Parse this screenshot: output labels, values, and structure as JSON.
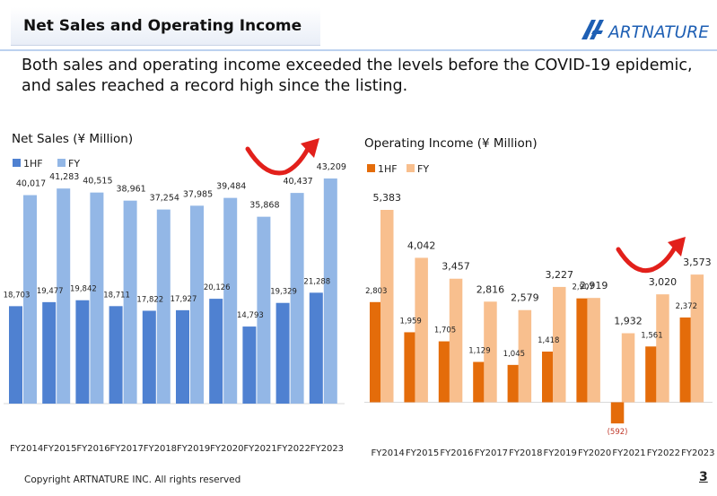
{
  "header": {
    "title": "Net Sales and Operating Income",
    "logo_text": "ARTNATURE"
  },
  "subtitle": "Both sales and operating income exceeded the levels before the COVID-19 epidemic, and sales reached a record high since the listing.",
  "footer": {
    "copyright": "Copyright ARTNATURE INC. All rights reserved",
    "page_number": "3"
  },
  "colors": {
    "net_1hf": "#4f81d1",
    "net_fy": "#93b7e6",
    "op_1hf": "#e46c0a",
    "op_fy": "#f8bf8e",
    "arrow": "#e2201b",
    "accent_line": "#bcd1ef"
  },
  "chart_data": [
    {
      "type": "bar",
      "title": "Net Sales (¥ Million)",
      "categories": [
        "FY2014",
        "FY2015",
        "FY2016",
        "FY2017",
        "FY2018",
        "FY2019",
        "FY2020",
        "FY2021",
        "FY2022",
        "FY2023"
      ],
      "series": [
        {
          "name": "1HF",
          "values": [
            18703,
            19477,
            19842,
            18711,
            17822,
            17927,
            20126,
            14793,
            19329,
            21288
          ],
          "labels": [
            "18,703",
            "19,477",
            "19,842",
            "18,711",
            "17,822",
            "17,927",
            "20,126",
            "14,793",
            "19,329",
            "21,288"
          ]
        },
        {
          "name": "FY",
          "values": [
            40017,
            41283,
            40515,
            38961,
            37254,
            37985,
            39484,
            35868,
            40437,
            43209
          ],
          "labels": [
            "40,017",
            "41,283",
            "40,515",
            "38,961",
            "37,254",
            "37,985",
            "39,484",
            "35,868",
            "40,437",
            "43,209"
          ]
        }
      ],
      "ylim": [
        0,
        45000
      ],
      "legend": "top-left"
    },
    {
      "type": "bar",
      "title": "Operating Income (¥ Million)",
      "categories": [
        "FY2014",
        "FY2015",
        "FY2016",
        "FY2017",
        "FY2018",
        "FY2019",
        "FY2020",
        "FY2021",
        "FY2022",
        "FY2023"
      ],
      "series": [
        {
          "name": "1HF",
          "values": [
            2803,
            1959,
            1705,
            1129,
            1045,
            1418,
            2907,
            -592,
            1561,
            2372
          ],
          "labels": [
            "2,803",
            "1,959",
            "1,705",
            "1,129",
            "1,045",
            "1,418",
            "2,907",
            "(592)",
            "1,561",
            "2,372"
          ]
        },
        {
          "name": "FY",
          "values": [
            5383,
            4042,
            3457,
            2816,
            2579,
            3227,
            2919,
            1932,
            3020,
            3573
          ],
          "labels": [
            "5,383",
            "4,042",
            "3,457",
            "2,816",
            "2,579",
            "3,227",
            "2,919",
            "1,932",
            "3,020",
            "3,573"
          ]
        }
      ],
      "ylim": [
        -1000,
        6000
      ],
      "legend": "top-left"
    }
  ]
}
